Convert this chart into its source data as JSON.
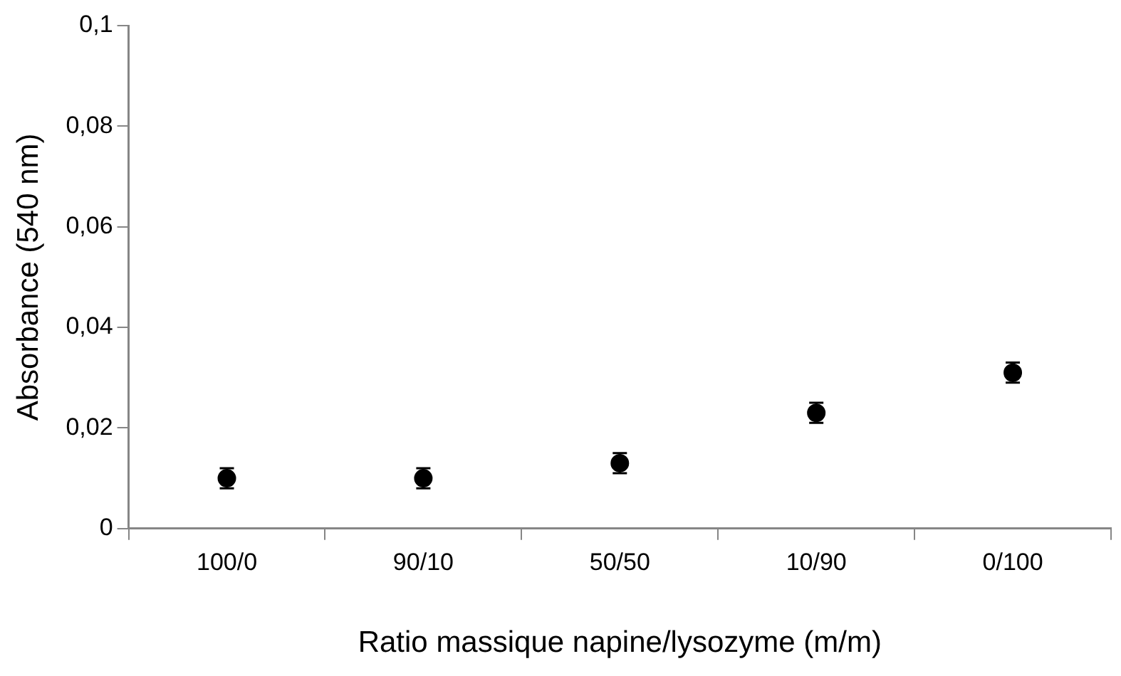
{
  "chart_data": {
    "type": "scatter",
    "xlabel": "Ratio massique napine/lysozyme (m/m)",
    "ylabel": "Absorbance (540 nm)",
    "categories": [
      "100/0",
      "90/10",
      "50/50",
      "10/90",
      "0/100"
    ],
    "series": [
      {
        "color": "#000000",
        "values": [
          0.01,
          0.01,
          0.013,
          0.023,
          0.031
        ],
        "errors": [
          0.002,
          0.002,
          0.002,
          0.002,
          0.002
        ]
      }
    ],
    "ylim": [
      0,
      0.1
    ],
    "yticks": [
      {
        "value": 0,
        "label": "0"
      },
      {
        "value": 0.02,
        "label": "0,02"
      },
      {
        "value": 0.04,
        "label": "0,04"
      },
      {
        "value": 0.06,
        "label": "0,06"
      },
      {
        "value": 0.08,
        "label": "0,08"
      },
      {
        "value": 0.1,
        "label": "0,1"
      }
    ],
    "grid": false,
    "legend": false,
    "marker": "circle"
  }
}
